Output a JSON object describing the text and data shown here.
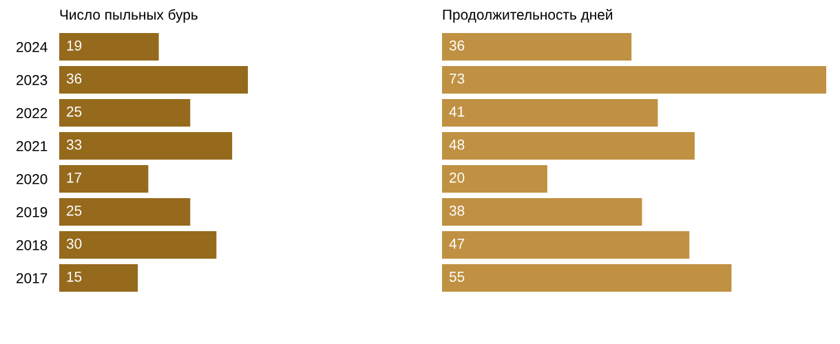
{
  "chart_data": [
    {
      "type": "bar",
      "orientation": "horizontal",
      "title": "Число пыльных бурь",
      "categories": [
        "2024",
        "2023",
        "2022",
        "2021",
        "2020",
        "2019",
        "2018",
        "2017"
      ],
      "values": [
        19,
        36,
        25,
        33,
        17,
        25,
        30,
        15
      ],
      "color": "#956a1c",
      "data_labels": true,
      "grid": false,
      "legend": false,
      "tick_labels": "y"
    },
    {
      "type": "bar",
      "orientation": "horizontal",
      "title": "Продолжительность дней",
      "categories": [
        null,
        null,
        null,
        null,
        null,
        null,
        null,
        null
      ],
      "values": [
        36,
        73,
        41,
        48,
        20,
        38,
        47,
        55
      ],
      "color": "#c09142",
      "data_labels": true,
      "grid": false,
      "legend": false,
      "tick_labels": false
    }
  ]
}
